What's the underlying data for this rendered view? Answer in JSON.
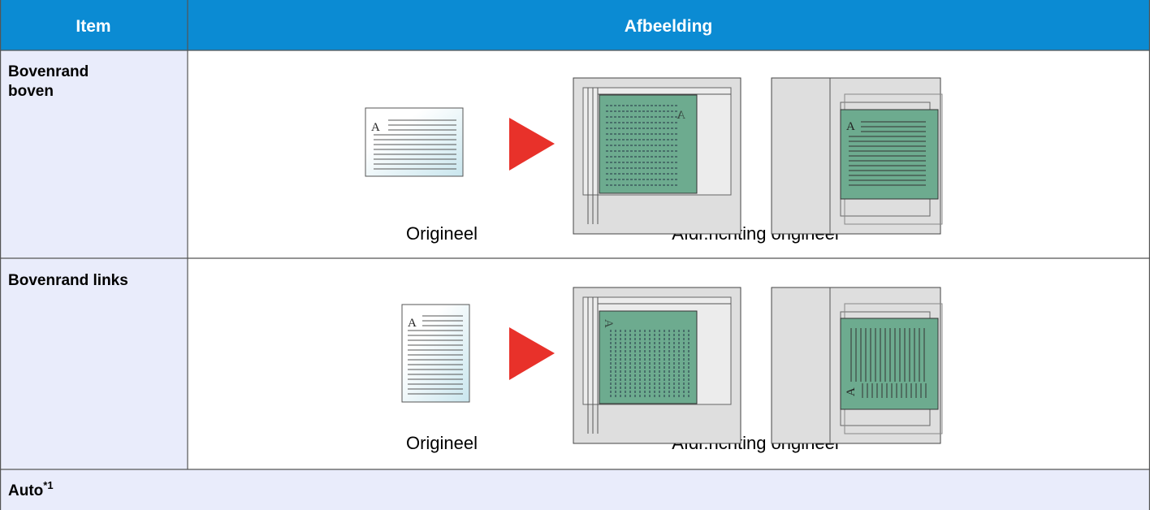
{
  "table": {
    "header": [
      "Item",
      "Afbeelding"
    ],
    "rows": [
      {
        "item": "Bovenrand boven",
        "icon_text": "A",
        "captions": [
          "Origineel",
          "Afdr.richting origineel"
        ]
      },
      {
        "item": "Bovenrand links",
        "icon_text": "A",
        "captions": [
          "Origineel",
          "Afdr.richting origineel"
        ]
      },
      {
        "item": "Auto",
        "note": "*1"
      }
    ]
  }
}
